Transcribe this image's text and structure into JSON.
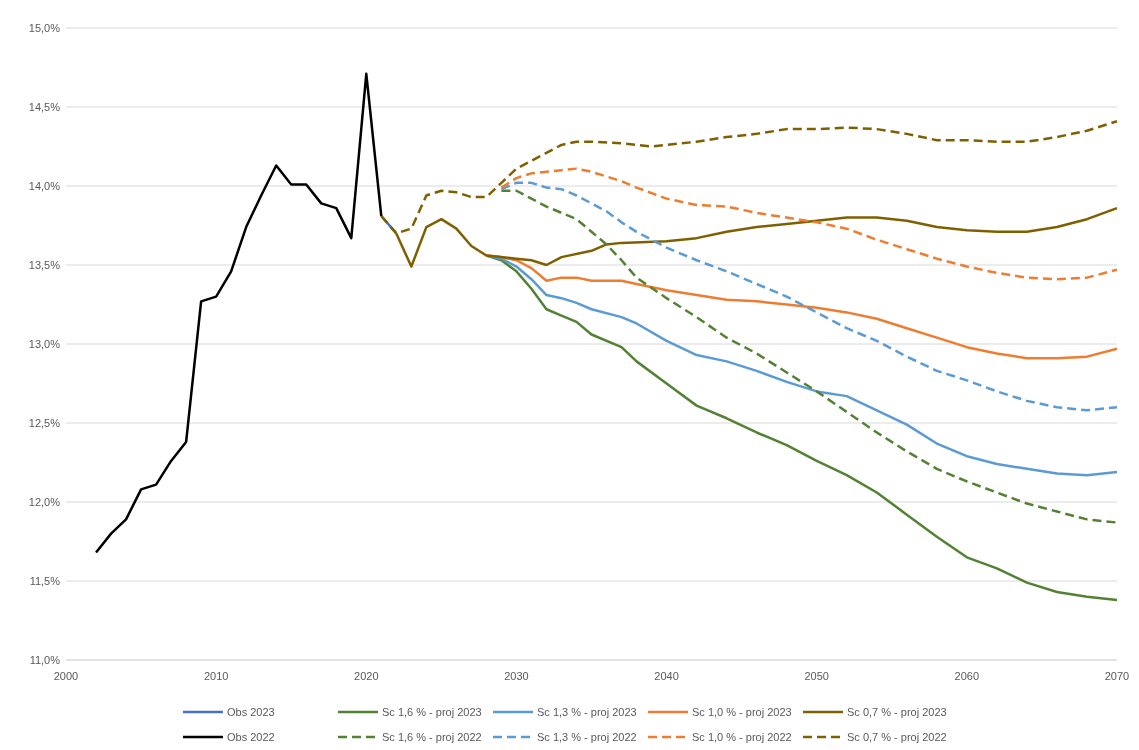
{
  "chart_data": {
    "type": "line",
    "xlim": [
      2000,
      2070
    ],
    "xticks": [
      2000,
      2010,
      2020,
      2030,
      2040,
      2050,
      2060,
      2070
    ],
    "ylim": [
      11,
      15
    ],
    "yticks": [
      {
        "value": 11,
        "label": "11,0%"
      },
      {
        "value": 11.5,
        "label": "11,5%"
      },
      {
        "value": 12,
        "label": "12,0%"
      },
      {
        "value": 12.5,
        "label": "12,5%"
      },
      {
        "value": 13,
        "label": "13,0%"
      },
      {
        "value": 13.5,
        "label": "13,5%"
      },
      {
        "value": 14,
        "label": "14,0%"
      },
      {
        "value": 14.5,
        "label": "14,5%"
      },
      {
        "value": 15,
        "label": "15,0%"
      }
    ],
    "grid": "y",
    "legend": "bottom",
    "series": [
      {
        "name": "Obs 2023",
        "color": "#4472c4",
        "line_style": "solid",
        "x": [
          2021,
          2022
        ],
        "values": [
          13.81,
          13.7
        ]
      },
      {
        "name": "Sc 1,6 % - proj 2023",
        "color": "#548235",
        "line_style": "solid",
        "x": [
          2028,
          2029,
          2030,
          2031,
          2032,
          2033,
          2034,
          2035,
          2037,
          2038,
          2040,
          2042,
          2044,
          2046,
          2048,
          2050,
          2052,
          2054,
          2056,
          2058,
          2060,
          2062,
          2064,
          2066,
          2068,
          2070
        ],
        "values": [
          13.56,
          13.53,
          13.46,
          13.35,
          13.22,
          13.18,
          13.14,
          13.06,
          12.98,
          12.89,
          12.75,
          12.61,
          12.53,
          12.44,
          12.36,
          12.26,
          12.17,
          12.06,
          11.92,
          11.78,
          11.65,
          11.58,
          11.49,
          11.43,
          11.4,
          11.38
        ]
      },
      {
        "name": "Sc 1,3 % - proj 2023",
        "color": "#5b9bd5",
        "line_style": "solid",
        "x": [
          2028,
          2029,
          2030,
          2031,
          2032,
          2033,
          2034,
          2035,
          2037,
          2038,
          2040,
          2042,
          2044,
          2046,
          2048,
          2050,
          2052,
          2054,
          2056,
          2058,
          2060,
          2062,
          2064,
          2066,
          2068,
          2070
        ],
        "values": [
          13.56,
          13.54,
          13.49,
          13.41,
          13.31,
          13.29,
          13.26,
          13.22,
          13.17,
          13.13,
          13.02,
          12.93,
          12.89,
          12.83,
          12.76,
          12.7,
          12.67,
          12.58,
          12.49,
          12.37,
          12.29,
          12.24,
          12.21,
          12.18,
          12.17,
          12.19
        ]
      },
      {
        "name": "Sc 1,0 % - proj 2023",
        "color": "#ed7d31",
        "line_style": "solid",
        "x": [
          2028,
          2029,
          2030,
          2031,
          2032,
          2033,
          2034,
          2035,
          2037,
          2038,
          2040,
          2042,
          2044,
          2046,
          2048,
          2050,
          2052,
          2054,
          2056,
          2058,
          2060,
          2062,
          2064,
          2066,
          2068,
          2070
        ],
        "values": [
          13.56,
          13.55,
          13.53,
          13.48,
          13.4,
          13.42,
          13.42,
          13.4,
          13.4,
          13.38,
          13.34,
          13.31,
          13.28,
          13.27,
          13.25,
          13.23,
          13.2,
          13.16,
          13.1,
          13.04,
          12.98,
          12.94,
          12.91,
          12.91,
          12.92,
          12.97
        ]
      },
      {
        "name": "Sc 0,7 % - proj 2023",
        "color": "#7f6000",
        "line_style": "solid",
        "x": [
          2022,
          2023,
          2024,
          2025,
          2026,
          2027,
          2028,
          2030,
          2031,
          2032,
          2033,
          2035,
          2036,
          2037,
          2040,
          2042,
          2044,
          2046,
          2048,
          2050,
          2052,
          2054,
          2056,
          2058,
          2060,
          2062,
          2064,
          2066,
          2068,
          2070
        ],
        "values": [
          13.7,
          13.49,
          13.74,
          13.79,
          13.73,
          13.62,
          13.56,
          13.54,
          13.53,
          13.5,
          13.55,
          13.59,
          13.63,
          13.64,
          13.65,
          13.67,
          13.71,
          13.74,
          13.76,
          13.78,
          13.8,
          13.8,
          13.78,
          13.74,
          13.72,
          13.71,
          13.71,
          13.74,
          13.79,
          13.86
        ]
      },
      {
        "name": "Obs 2022",
        "color": "#000000",
        "line_style": "solid",
        "x": [
          2002,
          2003,
          2004,
          2005,
          2006,
          2007,
          2008,
          2009,
          2010,
          2011,
          2012,
          2013,
          2014,
          2015,
          2016,
          2017,
          2018,
          2019,
          2020,
          2021
        ],
        "values": [
          11.68,
          11.8,
          11.89,
          12.08,
          12.11,
          12.26,
          12.38,
          13.27,
          13.3,
          13.46,
          13.74,
          13.94,
          14.13,
          14.01,
          14.01,
          13.89,
          13.86,
          13.67,
          14.71,
          13.81
        ]
      },
      {
        "name": "Sc 1,6 % - proj 2022",
        "color": "#548235",
        "line_style": "dashed",
        "x": [
          2029,
          2030,
          2031,
          2032,
          2033,
          2034,
          2035,
          2036,
          2037,
          2038,
          2040,
          2042,
          2044,
          2046,
          2048,
          2050,
          2052,
          2054,
          2056,
          2058,
          2060,
          2062,
          2064,
          2066,
          2068,
          2070
        ],
        "values": [
          13.97,
          13.97,
          13.92,
          13.87,
          13.83,
          13.79,
          13.71,
          13.63,
          13.53,
          13.42,
          13.29,
          13.17,
          13.04,
          12.94,
          12.82,
          12.7,
          12.57,
          12.44,
          12.32,
          12.21,
          12.13,
          12.06,
          11.99,
          11.94,
          11.89,
          11.87
        ]
      },
      {
        "name": "Sc 1,3 % - proj 2022",
        "color": "#5b9bd5",
        "line_style": "dashed",
        "x": [
          2029,
          2030,
          2031,
          2032,
          2033,
          2034,
          2035,
          2036,
          2037,
          2038,
          2040,
          2042,
          2044,
          2046,
          2048,
          2050,
          2052,
          2054,
          2056,
          2058,
          2060,
          2062,
          2064,
          2066,
          2068,
          2070
        ],
        "values": [
          13.98,
          14.02,
          14.02,
          13.99,
          13.98,
          13.94,
          13.89,
          13.84,
          13.77,
          13.71,
          13.61,
          13.53,
          13.46,
          13.38,
          13.3,
          13.2,
          13.1,
          13.02,
          12.92,
          12.83,
          12.77,
          12.7,
          12.64,
          12.6,
          12.58,
          12.6
        ]
      },
      {
        "name": "Sc 1,0 % - proj 2022",
        "color": "#ed7d31",
        "line_style": "dashed",
        "x": [
          2029,
          2030,
          2031,
          2032,
          2033,
          2034,
          2035,
          2036,
          2037,
          2038,
          2040,
          2042,
          2044,
          2046,
          2048,
          2050,
          2052,
          2054,
          2056,
          2058,
          2060,
          2062,
          2064,
          2066,
          2068,
          2070
        ],
        "values": [
          13.99,
          14.05,
          14.08,
          14.09,
          14.1,
          14.11,
          14.09,
          14.06,
          14.03,
          13.99,
          13.92,
          13.88,
          13.87,
          13.83,
          13.8,
          13.77,
          13.73,
          13.66,
          13.6,
          13.54,
          13.49,
          13.45,
          13.42,
          13.41,
          13.42,
          13.47
        ]
      },
      {
        "name": "Sc 0,7 % - proj 2022",
        "color": "#7f6000",
        "line_style": "dashed",
        "x": [
          2021,
          2022,
          2023,
          2024,
          2025,
          2026,
          2027,
          2028,
          2029,
          2030,
          2031,
          2032,
          2033,
          2034,
          2035,
          2037,
          2039,
          2040,
          2042,
          2044,
          2046,
          2048,
          2050,
          2052,
          2054,
          2056,
          2058,
          2060,
          2062,
          2064,
          2066,
          2068,
          2070
        ],
        "values": [
          13.81,
          13.7,
          13.73,
          13.94,
          13.97,
          13.96,
          13.93,
          13.93,
          14.02,
          14.11,
          14.16,
          14.21,
          14.26,
          14.28,
          14.28,
          14.27,
          14.25,
          14.26,
          14.28,
          14.31,
          14.33,
          14.36,
          14.36,
          14.37,
          14.36,
          14.33,
          14.29,
          14.29,
          14.28,
          14.28,
          14.31,
          14.35,
          14.41
        ]
      }
    ]
  }
}
